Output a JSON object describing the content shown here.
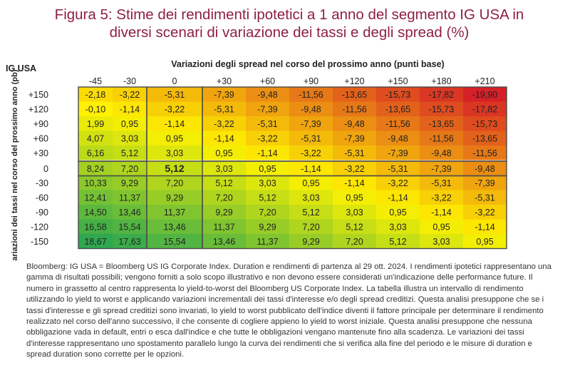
{
  "title_lines": [
    "Figura 5: Stime dei rendimenti ipotetici a 1 anno del segmento IG USA in",
    "diversi scenari di variazione dei tassi e degli spread (%)"
  ],
  "footnote": "Bloomberg: IG USA = Bloomberg US IG Corporate Index. Duration e rendimenti di partenza al 29 ott. 2024. I rendimenti ipotetici rappresentano una gamma di risultati possibili; vengono forniti a solo scopo illustrativo e non devono essere considerati un'indicazione delle performance future. Il numero in grassetto al centro rappresenta lo yield-to-worst del Bloomberg US Corporate Index. La tabella illustra un intervallo di rendimento utilizzando lo yield to worst e applicando variazioni incrementali dei tassi d'interesse e/o degli spread creditizi. Questa analisi presuppone che se i tassi d'interesse e gli spread creditizi sono invariati, lo yield to worst pubblicato dell'indice diventi il fattore principale per determinare il rendimento realizzato nel corso dell'anno successivo, il che consente di cogliere appieno lo yield to worst iniziale. Questa analisi presuppone che nessuna obbligazione vada in default, entri o esca dall'indice e che tutte le obbligazioni vengano mantenute fino alla scadenza. Le variazioni dei tassi d'interesse rappresentano uno spostamento parallelo lungo la curva dei rendimenti che si verifica alla fine del periodo e le misure di duration e spread duration sono corrette per le opzioni.",
  "chart_data": {
    "type": "heatmap",
    "corner_label": "IG USA",
    "xlabel": "Variazioni degli spread nel corso del prossimo anno (punti base)",
    "ylabel": "Variazioni dei tassi nel corso del prossimo anno (pb)",
    "x": [
      "-45",
      "-30",
      "0",
      "+30",
      "+60",
      "+90",
      "+120",
      "+150",
      "+180",
      "+210"
    ],
    "y": [
      "+150",
      "+120",
      "+90",
      "+60",
      "+30",
      "0",
      "-30",
      "-60",
      "-90",
      "-120",
      "-150"
    ],
    "values": [
      [
        -2.18,
        -3.22,
        -5.31,
        -7.39,
        -9.48,
        -11.56,
        -13.65,
        -15.73,
        -17.82,
        -19.9
      ],
      [
        -0.1,
        -1.14,
        -3.22,
        -5.31,
        -7.39,
        -9.48,
        -11.56,
        -13.65,
        -15.73,
        -17.82
      ],
      [
        1.99,
        0.95,
        -1.14,
        -3.22,
        -5.31,
        -7.39,
        -9.48,
        -11.56,
        -13.65,
        -15.73
      ],
      [
        4.07,
        3.03,
        0.95,
        -1.14,
        -3.22,
        -5.31,
        -7.39,
        -9.48,
        -11.56,
        -13.65
      ],
      [
        6.16,
        5.12,
        3.03,
        0.95,
        -1.14,
        -3.22,
        -5.31,
        -7.39,
        -9.48,
        -11.56
      ],
      [
        8.24,
        7.2,
        5.12,
        3.03,
        0.95,
        -1.14,
        -3.22,
        -5.31,
        -7.39,
        -9.48
      ],
      [
        10.33,
        9.29,
        7.2,
        5.12,
        3.03,
        0.95,
        -1.14,
        -3.22,
        -5.31,
        -7.39
      ],
      [
        12.41,
        11.37,
        9.29,
        7.2,
        5.12,
        3.03,
        0.95,
        -1.14,
        -3.22,
        -5.31
      ],
      [
        14.5,
        13.46,
        11.37,
        9.29,
        7.2,
        5.12,
        3.03,
        0.95,
        -1.14,
        -3.22
      ],
      [
        16.58,
        15.54,
        13.46,
        11.37,
        9.29,
        7.2,
        5.12,
        3.03,
        0.95,
        -1.14
      ],
      [
        18.67,
        17.63,
        15.54,
        13.46,
        11.37,
        9.29,
        7.2,
        5.12,
        3.03,
        0.95
      ]
    ],
    "highlight_value": "5,12",
    "color_scale": {
      "low": "#d62027",
      "mid": "#fff200",
      "high": "#2fa84f"
    }
  }
}
